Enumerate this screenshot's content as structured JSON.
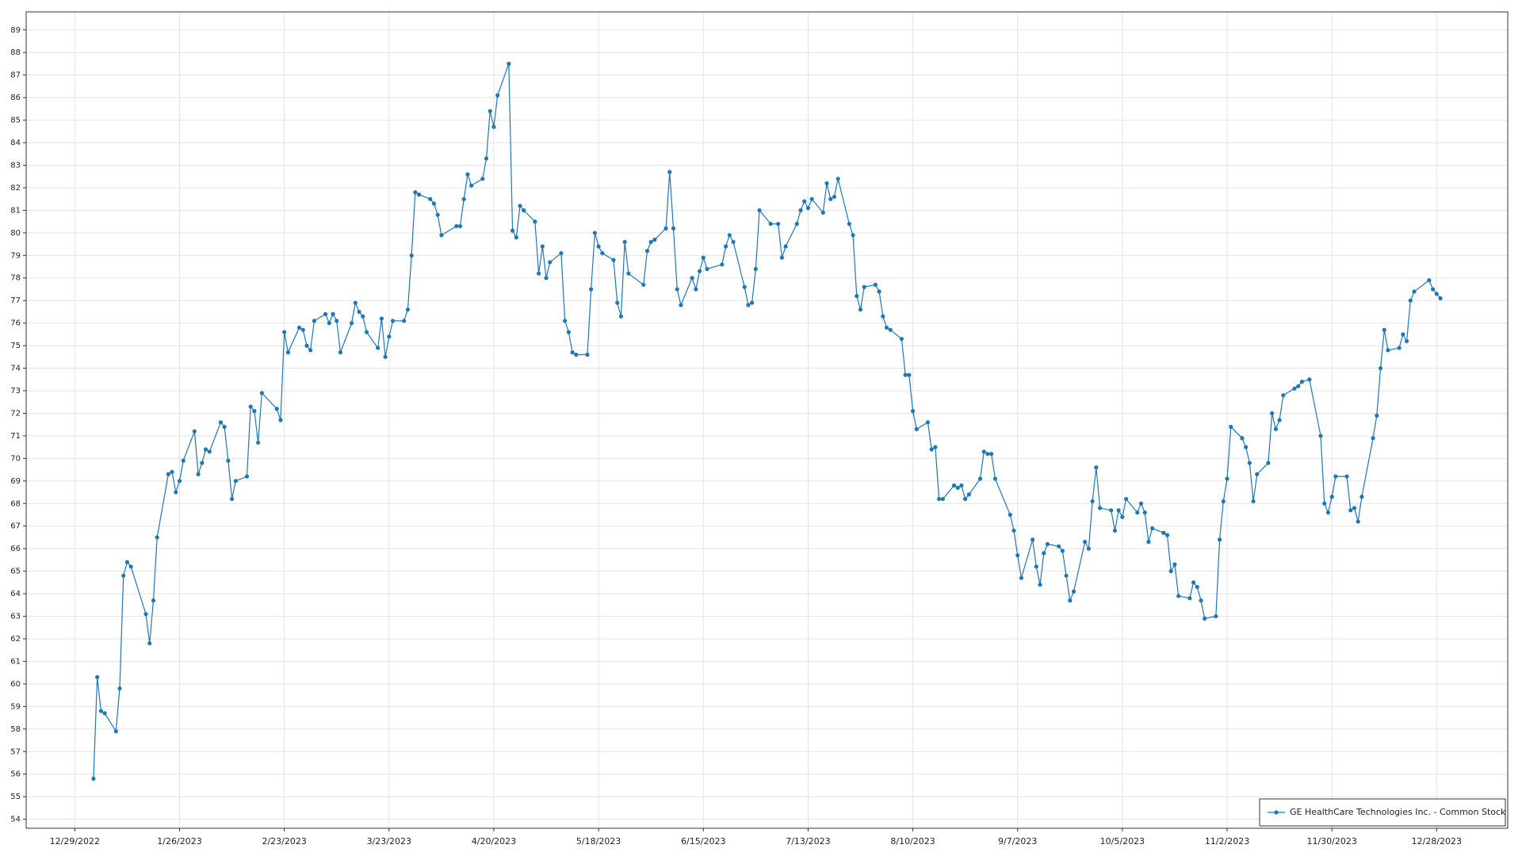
{
  "chart_data": {
    "type": "line",
    "x": [
      "1/3/2023",
      "1/4/2023",
      "1/5/2023",
      "1/6/2023",
      "1/9/2023",
      "1/10/2023",
      "1/11/2023",
      "1/12/2023",
      "1/13/2023",
      "1/17/2023",
      "1/18/2023",
      "1/19/2023",
      "1/20/2023",
      "1/23/2023",
      "1/24/2023",
      "1/25/2023",
      "1/26/2023",
      "1/27/2023",
      "1/30/2023",
      "1/31/2023",
      "2/1/2023",
      "2/2/2023",
      "2/3/2023",
      "2/6/2023",
      "2/7/2023",
      "2/8/2023",
      "2/9/2023",
      "2/10/2023",
      "2/13/2023",
      "2/14/2023",
      "2/15/2023",
      "2/16/2023",
      "2/17/2023",
      "2/21/2023",
      "2/22/2023",
      "2/23/2023",
      "2/24/2023",
      "2/27/2023",
      "2/28/2023",
      "3/1/2023",
      "3/2/2023",
      "3/3/2023",
      "3/6/2023",
      "3/7/2023",
      "3/8/2023",
      "3/9/2023",
      "3/10/2023",
      "3/13/2023",
      "3/14/2023",
      "3/15/2023",
      "3/16/2023",
      "3/17/2023",
      "3/20/2023",
      "3/21/2023",
      "3/22/2023",
      "3/23/2023",
      "3/24/2023",
      "3/27/2023",
      "3/28/2023",
      "3/29/2023",
      "3/30/2023",
      "3/31/2023",
      "4/3/2023",
      "4/4/2023",
      "4/5/2023",
      "4/6/2023",
      "4/10/2023",
      "4/11/2023",
      "4/12/2023",
      "4/13/2023",
      "4/14/2023",
      "4/17/2023",
      "4/18/2023",
      "4/19/2023",
      "4/20/2023",
      "4/21/2023",
      "4/24/2023",
      "4/25/2023",
      "4/26/2023",
      "4/27/2023",
      "4/28/2023",
      "5/1/2023",
      "5/2/2023",
      "5/3/2023",
      "5/4/2023",
      "5/5/2023",
      "5/8/2023",
      "5/9/2023",
      "5/10/2023",
      "5/11/2023",
      "5/12/2023",
      "5/15/2023",
      "5/16/2023",
      "5/17/2023",
      "5/18/2023",
      "5/19/2023",
      "5/22/2023",
      "5/23/2023",
      "5/24/2023",
      "5/25/2023",
      "5/26/2023",
      "5/30/2023",
      "5/31/2023",
      "6/1/2023",
      "6/2/2023",
      "6/5/2023",
      "6/6/2023",
      "6/7/2023",
      "6/8/2023",
      "6/9/2023",
      "6/12/2023",
      "6/13/2023",
      "6/14/2023",
      "6/15/2023",
      "6/16/2023",
      "6/20/2023",
      "6/21/2023",
      "6/22/2023",
      "6/23/2023",
      "6/26/2023",
      "6/27/2023",
      "6/28/2023",
      "6/29/2023",
      "6/30/2023",
      "7/3/2023",
      "7/5/2023",
      "7/6/2023",
      "7/7/2023",
      "7/10/2023",
      "7/11/2023",
      "7/12/2023",
      "7/13/2023",
      "7/14/2023",
      "7/17/2023",
      "7/18/2023",
      "7/19/2023",
      "7/20/2023",
      "7/21/2023",
      "7/24/2023",
      "7/25/2023",
      "7/26/2023",
      "7/27/2023",
      "7/28/2023",
      "7/31/2023",
      "8/1/2023",
      "8/2/2023",
      "8/3/2023",
      "8/4/2023",
      "8/7/2023",
      "8/8/2023",
      "8/9/2023",
      "8/10/2023",
      "8/11/2023",
      "8/14/2023",
      "8/15/2023",
      "8/16/2023",
      "8/17/2023",
      "8/18/2023",
      "8/21/2023",
      "8/22/2023",
      "8/23/2023",
      "8/24/2023",
      "8/25/2023",
      "8/28/2023",
      "8/29/2023",
      "8/30/2023",
      "8/31/2023",
      "9/1/2023",
      "9/5/2023",
      "9/6/2023",
      "9/7/2023",
      "9/8/2023",
      "9/11/2023",
      "9/12/2023",
      "9/13/2023",
      "9/14/2023",
      "9/15/2023",
      "9/18/2023",
      "9/19/2023",
      "9/20/2023",
      "9/21/2023",
      "9/22/2023",
      "9/25/2023",
      "9/26/2023",
      "9/27/2023",
      "9/28/2023",
      "9/29/2023",
      "10/2/2023",
      "10/3/2023",
      "10/4/2023",
      "10/5/2023",
      "10/6/2023",
      "10/9/2023",
      "10/10/2023",
      "10/11/2023",
      "10/12/2023",
      "10/13/2023",
      "10/16/2023",
      "10/17/2023",
      "10/18/2023",
      "10/19/2023",
      "10/20/2023",
      "10/23/2023",
      "10/24/2023",
      "10/25/2023",
      "10/26/2023",
      "10/27/2023",
      "10/30/2023",
      "10/31/2023",
      "11/1/2023",
      "11/2/2023",
      "11/3/2023",
      "11/6/2023",
      "11/7/2023",
      "11/8/2023",
      "11/9/2023",
      "11/10/2023",
      "11/13/2023",
      "11/14/2023",
      "11/15/2023",
      "11/16/2023",
      "11/17/2023",
      "11/20/2023",
      "11/21/2023",
      "11/22/2023",
      "11/24/2023",
      "11/27/2023",
      "11/28/2023",
      "11/29/2023",
      "11/30/2023",
      "12/1/2023",
      "12/4/2023",
      "12/5/2023",
      "12/6/2023",
      "12/7/2023",
      "12/8/2023",
      "12/11/2023",
      "12/12/2023",
      "12/13/2023",
      "12/14/2023",
      "12/15/2023",
      "12/18/2023",
      "12/19/2023",
      "12/20/2023",
      "12/21/2023",
      "12/22/2023",
      "12/26/2023",
      "12/27/2023",
      "12/28/2023",
      "12/29/2023"
    ],
    "series": [
      {
        "name": "GE HealthCare Technologies Inc. - Common Stock",
        "color": "#1f77b4",
        "values": [
          55.8,
          60.3,
          58.8,
          58.7,
          57.9,
          59.8,
          64.8,
          65.4,
          65.2,
          63.1,
          61.8,
          63.7,
          66.5,
          69.3,
          69.4,
          68.5,
          69.0,
          69.9,
          71.2,
          69.3,
          69.8,
          70.4,
          70.3,
          71.6,
          71.4,
          69.9,
          68.2,
          69.0,
          69.2,
          72.3,
          72.1,
          70.7,
          72.9,
          72.2,
          71.7,
          75.6,
          74.7,
          75.8,
          75.7,
          75.0,
          74.8,
          76.1,
          76.4,
          76.0,
          76.4,
          76.1,
          74.7,
          76.0,
          76.9,
          76.5,
          76.3,
          75.6,
          74.9,
          76.2,
          74.5,
          75.4,
          76.1,
          76.1,
          76.6,
          79.0,
          81.8,
          81.7,
          81.5,
          81.3,
          80.8,
          79.9,
          80.3,
          80.3,
          81.5,
          82.6,
          82.1,
          82.4,
          83.3,
          85.4,
          84.7,
          86.1,
          87.5,
          80.1,
          79.8,
          81.2,
          81.0,
          80.5,
          78.2,
          79.4,
          78.0,
          78.7,
          79.1,
          76.1,
          75.6,
          74.7,
          74.6,
          74.6,
          77.5,
          80.0,
          79.4,
          79.1,
          78.8,
          76.9,
          76.3,
          79.6,
          78.2,
          77.7,
          79.2,
          79.6,
          79.7,
          80.2,
          82.7,
          80.2,
          77.5,
          76.8,
          78.0,
          77.5,
          78.3,
          78.9,
          78.4,
          78.6,
          79.4,
          79.9,
          79.6,
          77.6,
          76.8,
          76.9,
          78.4,
          81.0,
          80.4,
          80.4,
          78.9,
          79.4,
          80.4,
          81.0,
          81.4,
          81.1,
          81.5,
          80.9,
          82.2,
          81.5,
          81.6,
          82.4,
          80.4,
          79.9,
          77.2,
          76.6,
          77.6,
          77.7,
          77.4,
          76.3,
          75.8,
          75.7,
          75.3,
          73.7,
          73.7,
          72.1,
          71.3,
          71.6,
          70.4,
          70.5,
          68.2,
          68.2,
          68.8,
          68.7,
          68.8,
          68.2,
          68.4,
          69.1,
          70.3,
          70.2,
          70.2,
          69.1,
          67.5,
          66.8,
          65.7,
          64.7,
          66.4,
          65.2,
          64.4,
          65.8,
          66.2,
          66.1,
          65.9,
          64.8,
          63.7,
          64.1,
          66.3,
          66.0,
          68.1,
          69.6,
          67.8,
          67.7,
          66.8,
          67.7,
          67.4,
          68.2,
          67.6,
          68.0,
          67.6,
          66.3,
          66.9,
          66.7,
          66.6,
          65.0,
          65.3,
          63.9,
          63.8,
          64.5,
          64.3,
          63.7,
          62.9,
          63.0,
          66.4,
          68.1,
          69.1,
          71.4,
          70.9,
          70.5,
          69.8,
          68.1,
          69.3,
          69.8,
          72.0,
          71.3,
          71.7,
          72.8,
          73.1,
          73.2,
          73.4,
          73.5,
          71.0,
          68.0,
          67.6,
          68.3,
          69.2,
          69.2,
          67.7,
          67.8,
          67.2,
          68.3,
          70.9,
          71.9,
          74.0,
          75.7,
          74.8,
          74.9,
          75.5,
          75.2,
          77.0,
          77.4,
          77.9,
          77.5,
          77.3,
          77.1
        ]
      }
    ],
    "xlim": [
      "12/16/2022",
      "1/16/2024"
    ],
    "xticks": [
      "12/29/2022",
      "1/26/2023",
      "2/23/2023",
      "3/23/2023",
      "4/20/2023",
      "5/18/2023",
      "6/15/2023",
      "7/13/2023",
      "8/10/2023",
      "9/7/2023",
      "10/5/2023",
      "11/2/2023",
      "11/30/2023",
      "12/28/2023"
    ],
    "ylim": [
      53.6,
      89.8
    ],
    "yticks": [
      54,
      55,
      56,
      57,
      58,
      59,
      60,
      61,
      62,
      63,
      64,
      65,
      66,
      67,
      68,
      69,
      70,
      71,
      72,
      73,
      74,
      75,
      76,
      77,
      78,
      79,
      80,
      81,
      82,
      83,
      84,
      85,
      86,
      87,
      88,
      89
    ],
    "grid": true,
    "legend": "lower right",
    "markers": true
  }
}
